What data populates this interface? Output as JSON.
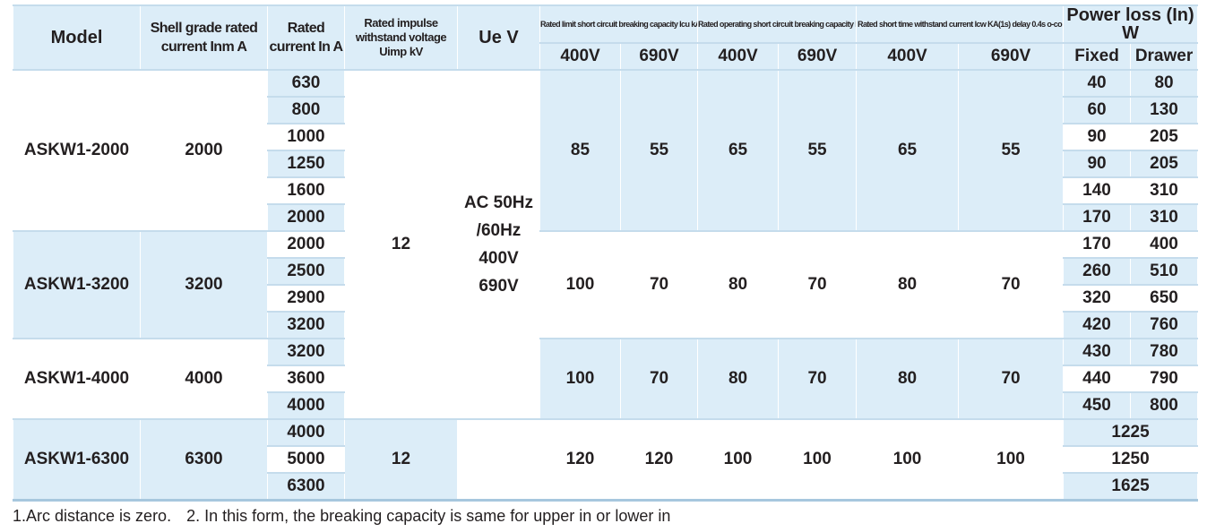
{
  "table": {
    "headers": {
      "model": "Model",
      "shell": "Shell grade rated current Inm A",
      "rated_current": "Rated current In A",
      "impulse": "Rated impulse withstand voltage Uimp kV",
      "ue": "Ue V",
      "icu": "Rated limit short circuit breaking capacity Icu kA o-co",
      "ics": "Rated operating short circuit breaking capacity Ics kA o-co-co",
      "icw": "Rated short time withstand current Icw KA(1s) delay 0.4s o-co",
      "power_loss": "Power loss (In) W",
      "v400": "400V",
      "v690": "690V",
      "fixed": "Fixed",
      "drawer": "Drawer"
    },
    "impulse_value_a": "12",
    "impulse_value_b": "12",
    "ue_lines": [
      "AC 50Hz",
      "/60Hz",
      "400V",
      "690V"
    ],
    "groups": [
      {
        "model": "ASKW1-2000",
        "shell": "2000",
        "currents": [
          "630",
          "800",
          "1000",
          "1250",
          "1600",
          "2000"
        ],
        "icu_400": "85",
        "icu_690": "55",
        "ics_400": "65",
        "ics_690": "55",
        "icw_400": "65",
        "icw_690": "55",
        "power_loss": [
          [
            "40",
            "80"
          ],
          [
            "60",
            "130"
          ],
          [
            "90",
            "205"
          ],
          [
            "90",
            "205"
          ],
          [
            "140",
            "310"
          ],
          [
            "170",
            "310"
          ]
        ]
      },
      {
        "model": "ASKW1-3200",
        "shell": "3200",
        "currents": [
          "2000",
          "2500",
          "2900",
          "3200"
        ],
        "icu_400": "100",
        "icu_690": "70",
        "ics_400": "80",
        "ics_690": "70",
        "icw_400": "80",
        "icw_690": "70",
        "power_loss": [
          [
            "170",
            "400"
          ],
          [
            "260",
            "510"
          ],
          [
            "320",
            "650"
          ],
          [
            "420",
            "760"
          ]
        ]
      },
      {
        "model": "ASKW1-4000",
        "shell": "4000",
        "currents": [
          "3200",
          "3600",
          "4000"
        ],
        "icu_400": "100",
        "icu_690": "70",
        "ics_400": "80",
        "ics_690": "70",
        "icw_400": "80",
        "icw_690": "70",
        "power_loss": [
          [
            "430",
            "780"
          ],
          [
            "440",
            "790"
          ],
          [
            "450",
            "800"
          ]
        ]
      },
      {
        "model": "ASKW1-6300",
        "shell": "6300",
        "currents": [
          "4000",
          "5000",
          "6300"
        ],
        "icu_400": "120",
        "icu_690": "120",
        "ics_400": "100",
        "ics_690": "100",
        "icw_400": "100",
        "icw_690": "100",
        "power_loss_merged": [
          "1225",
          "1250",
          "1625"
        ]
      }
    ]
  },
  "footnote": {
    "note1": "1.Arc distance is zero.",
    "note2": "2. In this form, the breaking capacity is same for upper in or lower in"
  }
}
